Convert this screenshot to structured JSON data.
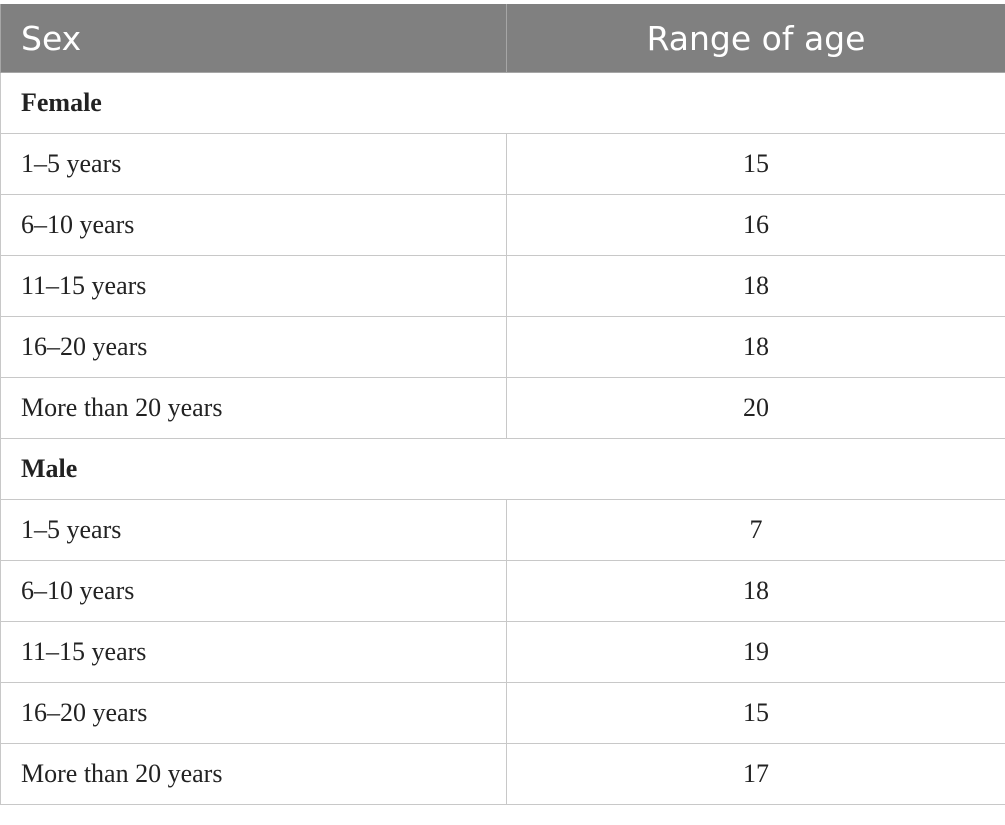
{
  "header": {
    "col1": "Sex",
    "col2": "Range of age"
  },
  "groups": [
    {
      "title": "Female",
      "rows": [
        {
          "label": "1–5 years",
          "value": "15"
        },
        {
          "label": "6–10 years",
          "value": "16"
        },
        {
          "label": "11–15 years",
          "value": "18"
        },
        {
          "label": "16–20 years",
          "value": "18"
        },
        {
          "label": "More than 20 years",
          "value": "20"
        }
      ]
    },
    {
      "title": "Male",
      "rows": [
        {
          "label": "1–5 years",
          "value": "7"
        },
        {
          "label": "6–10 years",
          "value": "18"
        },
        {
          "label": "11–15 years",
          "value": "19"
        },
        {
          "label": "16–20 years",
          "value": "15"
        },
        {
          "label": "More than 20 years",
          "value": "17"
        }
      ]
    }
  ],
  "colors": {
    "header_bg": "#808080",
    "header_text": "#ffffff",
    "grid": "#c8c8c8"
  }
}
